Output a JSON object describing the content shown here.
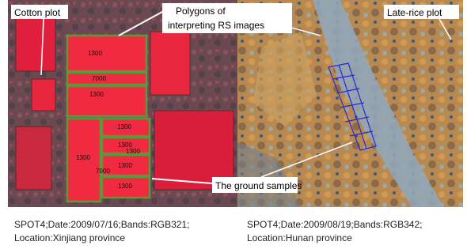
{
  "left_panel": {
    "cotton_label": "Cotton plot",
    "polygons_label": [
      "Polygons of",
      "interpreting RS images"
    ],
    "field_codes": [
      "1300",
      "7000",
      "1300",
      "1300",
      "1300",
      "1300",
      "7000",
      "1300",
      "1300",
      "1300"
    ],
    "caption": [
      "SPOT4;Date:2009/07/16;Bands:RGB321;",
      "Location:Xinjiang province"
    ]
  },
  "right_panel": {
    "late_rice_label": "Late-rice plot",
    "ground_samples_label": "The ground samples",
    "caption": [
      "SPOT4;Date:2009/08/19;Bands:RGB342;",
      "Location:Hunan province"
    ]
  }
}
